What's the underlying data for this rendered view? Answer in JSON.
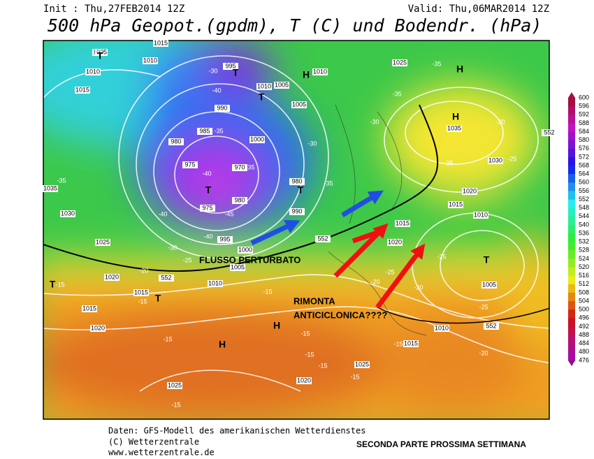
{
  "header": {
    "init": "Init : Thu,27FEB2014 12Z",
    "valid": "Valid: Thu,06MAR2014 12Z",
    "title": "500 hPa Geopot.(gpdm), T (C) und Bodendr. (hPa)"
  },
  "colorbar": [
    600,
    596,
    592,
    588,
    584,
    580,
    576,
    572,
    568,
    564,
    560,
    556,
    552,
    548,
    544,
    540,
    536,
    532,
    528,
    524,
    520,
    516,
    512,
    508,
    504,
    500,
    496,
    492,
    488,
    484,
    480,
    476
  ],
  "map": {
    "pressure_labels": [
      "1005",
      "1015",
      "1010",
      "1010",
      "1015",
      "995",
      "1010",
      "1005",
      "990",
      "985",
      "980",
      "975",
      "970",
      "975",
      "980",
      "1000",
      "1005",
      "1010",
      "1025",
      "1035",
      "1030",
      "1020",
      "1015",
      "1010",
      "1015",
      "1020",
      "1005",
      "1010",
      "1015",
      "1025",
      "1025",
      "1020",
      "1015",
      "1015",
      "1020",
      "1025",
      "1030",
      "1035",
      "1010",
      "1005",
      "1000",
      "995",
      "990",
      "980",
      "1020",
      "552",
      "552",
      "552",
      "552"
    ],
    "centers": [
      "H",
      "H",
      "H",
      "H",
      "H",
      "T",
      "T",
      "T",
      "T",
      "T",
      "T",
      "T",
      "T"
    ],
    "temperature_labels": [
      "-30",
      "-30",
      "-40",
      "-35",
      "-40",
      "-35",
      "-40",
      "-45",
      "-40",
      "-30",
      "-25",
      "-20",
      "-15",
      "-15",
      "-15",
      "-20",
      "-25",
      "-30",
      "-25",
      "-25",
      "-20",
      "-15",
      "-15",
      "-15",
      "-15",
      "-15",
      "-15",
      "-15",
      "-35",
      "-35",
      "-30",
      "-30",
      "-35",
      "-30",
      "-25",
      "-25",
      "-35"
    ]
  },
  "annotations": {
    "flow": "FLUSSO PERTURBATO",
    "ridge_1": "RIMONTA",
    "ridge_2": "ANTICICLONICA????"
  },
  "footer": {
    "source": "Daten: GFS-Modell des amerikanischen Wetterdienstes",
    "copyright": "(C) Wetterzentrale",
    "url": "www.wetterzentrale.de",
    "note": "SECONDA PARTE PROSSIMA SETTIMANA"
  }
}
